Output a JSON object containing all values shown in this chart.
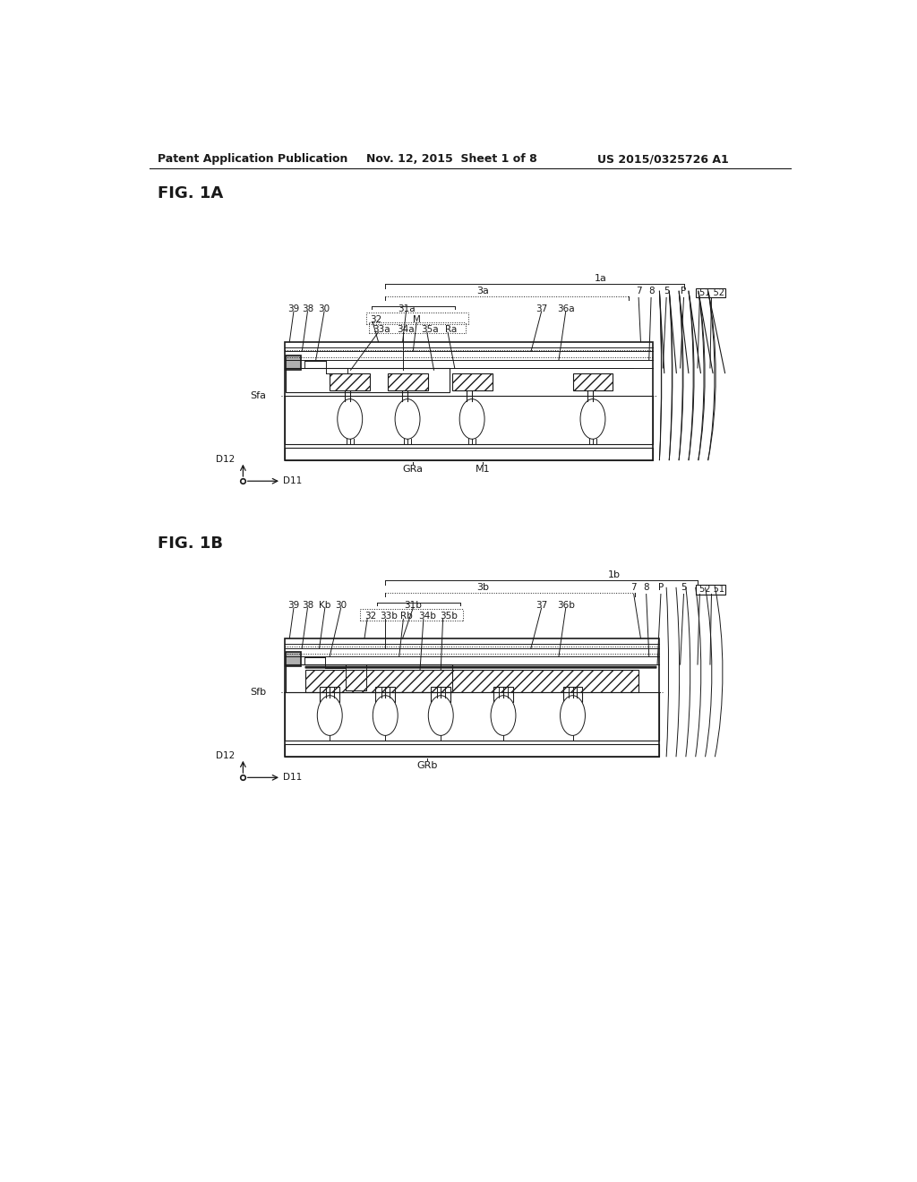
{
  "bg_color": "#ffffff",
  "line_color": "#1a1a1a",
  "gray_fill": "#b0b0b0",
  "header_text": "Patent Application Publication",
  "header_date": "Nov. 12, 2015  Sheet 1 of 8",
  "header_patent": "US 2015/0325726 A1",
  "fig1a_label": "FIG. 1A",
  "fig1b_label": "FIG. 1B"
}
